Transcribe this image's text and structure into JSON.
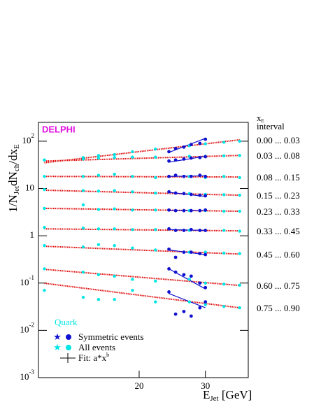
{
  "chart_data": {
    "type": "scatter",
    "title": "DELPHI",
    "x_label": [
      "E",
      "Jet",
      " [GeV]"
    ],
    "y_label": [
      "1/N",
      "Jet",
      "dN",
      "ch",
      "/dx",
      "E"
    ],
    "log_x": true,
    "log_y": true,
    "xlim": [
      10.8,
      39
    ],
    "xticks": [
      20,
      30
    ],
    "ylim": [
      0.001,
      250
    ],
    "yticks": [
      {
        "value": 0.001,
        "label": "10",
        "exp": "-3"
      },
      {
        "value": 0.01,
        "label": "10",
        "exp": "-2"
      },
      {
        "value": 0.1,
        "label": "10",
        "exp": "-1"
      },
      1,
      10,
      {
        "value": 100,
        "label": "10",
        "exp": "2"
      }
    ],
    "interval_header": [
      "x",
      "E",
      "interval"
    ],
    "x": [
      11.2,
      14.2,
      15.6,
      17.2,
      19.2,
      22.1,
      27.2,
      30,
      33.6,
      37
    ],
    "sym_x": [
      24,
      25,
      26.3,
      27.5,
      29,
      30
    ],
    "fit_x": [
      11.2,
      37
    ],
    "sym_fit_x": [
      24,
      30
    ],
    "all_color": "#00e5e5",
    "sym_color": "#1010d0",
    "fit_color": "#e01010",
    "series": [
      {
        "name": "0.00 ... 0.03",
        "values": [
          40,
          45,
          50,
          52,
          60,
          68,
          80,
          88,
          95,
          100
        ],
        "sym_values": [
          60,
          70,
          75,
          85,
          90,
          110
        ],
        "fit": [
          35,
          107
        ],
        "sym_fit": [
          58,
          115
        ]
      },
      {
        "name": "0.03 ... 0.08",
        "values": [
          40,
          42,
          44,
          45,
          46,
          46,
          48,
          48,
          49,
          50
        ],
        "sym_values": [
          38,
          40,
          42,
          44,
          45,
          47
        ],
        "fit": [
          38,
          50
        ],
        "sym_fit": [
          36,
          48
        ]
      },
      {
        "name": "0.08 ... 0.15",
        "values": [
          18,
          18,
          19,
          20,
          18,
          17,
          18,
          17,
          18,
          17
        ],
        "sym_values": [
          18,
          19,
          18,
          18,
          19,
          18
        ],
        "fit": [
          18,
          17.5
        ],
        "sym_fit": [
          18,
          18.5
        ]
      },
      {
        "name": "0.15 ... 0.23",
        "values": [
          9.5,
          9,
          8.8,
          9,
          8.5,
          8,
          7.8,
          7.5,
          7.4,
          7.2
        ],
        "sym_values": [
          8.5,
          8,
          7.8,
          7.5,
          7.2,
          7
        ],
        "fit": [
          9.2,
          7.2
        ],
        "sym_fit": [
          8.3,
          6.8
        ]
      },
      {
        "name": "0.23 ... 0.33",
        "values": [
          3.8,
          4.5,
          3.6,
          3.7,
          3.5,
          3.5,
          3.4,
          3.4,
          3.3,
          3.3
        ],
        "sym_values": [
          3.5,
          3.4,
          3.4,
          3.4,
          3.4,
          3.5
        ],
        "fit": [
          3.8,
          3.3
        ],
        "sym_fit": [
          3.4,
          3.4
        ]
      },
      {
        "name": "0.33 ... 0.45",
        "values": [
          1.5,
          1.45,
          1.4,
          1.4,
          1.35,
          1.35,
          1.3,
          1.3,
          1.3,
          1.25
        ],
        "sym_values": [
          1.4,
          1.3,
          1.3,
          1.35,
          1.3,
          1.3
        ],
        "fit": [
          1.4,
          1.27
        ],
        "sym_fit": [
          1.35,
          1.3
        ]
      },
      {
        "name": "0.45 ... 0.60",
        "values": [
          0.62,
          0.58,
          0.65,
          0.62,
          0.55,
          0.5,
          0.45,
          0.45,
          0.43,
          0.42
        ],
        "sym_values": [
          0.52,
          0.35,
          0.45,
          0.45,
          0.42,
          0.4
        ],
        "fit": [
          0.6,
          0.41
        ],
        "sym_fit": [
          0.5,
          0.4
        ]
      },
      {
        "name": "0.60 ... 0.75",
        "values": [
          0.2,
          0.17,
          0.15,
          0.14,
          0.12,
          0.11,
          0.12,
          0.1,
          0.095,
          0.09
        ],
        "sym_values": [
          0.2,
          0.17,
          0.15,
          0.14,
          0.1,
          0.08
        ],
        "fit": [
          0.195,
          0.089
        ],
        "sym_fit": [
          0.2,
          0.075
        ]
      },
      {
        "name": "0.75 ... 0.90",
        "values": [
          0.07,
          0.05,
          0.045,
          0.045,
          0.07,
          0.04,
          0.04,
          0.035,
          0.032,
          0.03
        ],
        "sym_values": [
          0.065,
          0.022,
          0.025,
          0.02,
          0.03,
          0.04
        ],
        "fit": [
          0.099,
          0.03
        ],
        "sym_fit": [
          0.06,
          0.03
        ]
      }
    ],
    "legend": {
      "title": "Quark",
      "symmetric": "Symmetric events",
      "all": "All events",
      "fit": "Fit: a*x",
      "fit_exp": "b"
    }
  }
}
